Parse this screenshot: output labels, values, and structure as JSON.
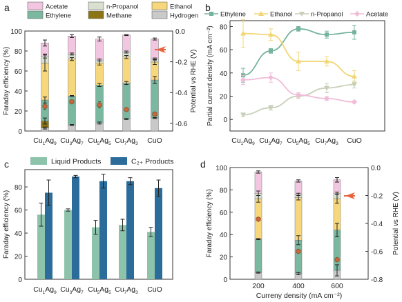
{
  "colors": {
    "acetate": "#f2c6e0",
    "npropanol": "#d9e0cf",
    "ethanol": "#f7d77c",
    "ethylene": "#7ab8a0",
    "methane": "#8b7414",
    "hydrogen": "#c9c9c9",
    "potential": "#c9683c",
    "liquid": "#8dc3ab",
    "c2": "#2b6c9a",
    "line_ethylene": "#74b39c",
    "line_ethanol": "#f3d674",
    "line_npropanol": "#c7cfb8",
    "line_acetate": "#f0bcd8",
    "arrow": "#e8623c"
  },
  "category_labels": [
    {
      "base": "Cu",
      "s1": "1",
      "mid": "Ag",
      "s2": "9"
    },
    {
      "base": "Cu",
      "s1": "3",
      "mid": "Ag",
      "s2": "7"
    },
    {
      "base": "Cu",
      "s1": "5",
      "mid": "Ag",
      "s2": "5"
    },
    {
      "base": "Cu",
      "s1": "7",
      "mid": "Ag",
      "s2": "3"
    },
    {
      "base": "CuO",
      "s1": "",
      "mid": "",
      "s2": ""
    }
  ],
  "panel_letters": [
    "a",
    "b",
    "c",
    "d"
  ],
  "chart_data": [
    {
      "id": "a",
      "type": "bar",
      "stacked": true,
      "legend": [
        "Acetate",
        "n-Propanol",
        "Ethanol",
        "Ethylene",
        "Methane",
        "Hydrogen"
      ],
      "legend_position": "top",
      "ylabel": "Faraday efficiency (%)",
      "ylim": [
        0,
        100
      ],
      "yticks": [
        0,
        20,
        40,
        60,
        80,
        100
      ],
      "y2label": "Potential vs RHE (V)",
      "y2lim": [
        0,
        -0.65
      ],
      "y2ticks": [
        "0.0",
        "-0.2",
        "-0.4",
        "-0.6"
      ],
      "series": [
        {
          "name": "Hydrogen",
          "values": [
            3,
            6,
            8,
            12,
            13
          ],
          "errors": [
            1,
            0.5,
            1,
            0.5,
            0.5
          ]
        },
        {
          "name": "Methane",
          "values": [
            7,
            0,
            0,
            0,
            0
          ],
          "errors": [
            3,
            0,
            0,
            0,
            0
          ]
        },
        {
          "name": "Ethylene",
          "values": [
            21,
            29,
            38,
            36,
            38
          ],
          "errors": [
            3,
            0.5,
            1.5,
            1.5,
            3.5
          ]
        },
        {
          "name": "Ethanol",
          "values": [
            37,
            37,
            22,
            26,
            18
          ],
          "errors": [
            8,
            1.5,
            2,
            1.5,
            2.5
          ]
        },
        {
          "name": "n-Propanol",
          "values": [
            7,
            5,
            3,
            5,
            3
          ],
          "errors": [
            2,
            1,
            1,
            1,
            1
          ]
        },
        {
          "name": "Acetate",
          "values": [
            13,
            18,
            21,
            17,
            20
          ],
          "errors": [
            3,
            1.5,
            2,
            0.5,
            1
          ]
        }
      ],
      "potential": [
        -0.49,
        -0.46,
        -0.48,
        -0.51,
        -0.54
      ],
      "potential_err": [
        0.02,
        0.01,
        0.02,
        0.01,
        0.01
      ]
    },
    {
      "id": "b",
      "type": "line",
      "legend": [
        "Ethylene",
        "Ethanol",
        "n-Propanol",
        "Acetate"
      ],
      "legend_position": "top",
      "ylabel": "Partial current density (mA cm⁻²)",
      "ylim": [
        -10,
        85
      ],
      "yticks": [
        0,
        20,
        40,
        60,
        80
      ],
      "series": [
        {
          "name": "Ethylene",
          "values": [
            38,
            59,
            78,
            73,
            75
          ],
          "errors": [
            6,
            2,
            2,
            3,
            6
          ]
        },
        {
          "name": "Ethanol",
          "values": [
            74,
            73,
            50,
            50,
            37
          ],
          "errors": [
            12,
            5,
            8,
            4,
            5
          ]
        },
        {
          "name": "n-Propanol",
          "values": [
            4,
            10,
            20,
            27,
            30
          ],
          "errors": [
            1.5,
            2,
            2,
            4,
            3
          ]
        },
        {
          "name": "Acetate",
          "values": [
            34,
            36,
            21,
            18,
            15
          ],
          "errors": [
            4,
            4,
            2,
            1.5,
            1
          ]
        }
      ]
    },
    {
      "id": "c",
      "type": "bar",
      "legend": [
        "Liquid Products",
        "C₂₊ Products"
      ],
      "legend_position": "top",
      "ylabel": "Faraday efficiency (%)",
      "ylim": [
        0,
        95
      ],
      "yticks": [
        0,
        20,
        40,
        60,
        80
      ],
      "series": [
        {
          "name": "Liquid Products",
          "values": [
            56,
            60,
            45,
            47,
            41
          ],
          "errors": [
            10,
            1,
            6,
            5,
            4
          ]
        },
        {
          "name": "C₂₊ Products",
          "values": [
            75,
            89,
            85,
            85,
            79
          ],
          "errors": [
            11,
            1,
            6,
            3,
            7
          ]
        }
      ]
    },
    {
      "id": "d",
      "type": "bar",
      "stacked": true,
      "categories": [
        "200",
        "400",
        "600"
      ],
      "xlabel": "Curreny density (mA cm⁻²)",
      "ylabel": "Faraday efficiency (%)",
      "ylim": [
        0,
        100
      ],
      "yticks": [
        0,
        20,
        40,
        60,
        80,
        100
      ],
      "y2label": "Potential vs RHE (V)",
      "y2lim": [
        0,
        -0.8
      ],
      "y2ticks": [
        "0.0",
        "-0.2",
        "-0.4",
        "-0.6",
        "-0.8"
      ],
      "series": [
        {
          "name": "Hydrogen",
          "values": [
            6,
            5,
            8
          ],
          "errors": [
            0.5,
            1,
            5
          ]
        },
        {
          "name": "Ethylene",
          "values": [
            30,
            30,
            36
          ],
          "errors": [
            0.5,
            4,
            6
          ]
        },
        {
          "name": "Ethanol",
          "values": [
            36,
            38,
            28
          ],
          "errors": [
            3,
            2,
            4
          ]
        },
        {
          "name": "n-Propanol",
          "values": [
            5,
            3,
            5
          ],
          "errors": [
            2,
            1,
            1
          ]
        },
        {
          "name": "Acetate",
          "values": [
            19,
            12,
            12
          ],
          "errors": [
            1,
            1,
            2
          ]
        }
      ],
      "potential": [
        -0.37,
        -0.6,
        -0.66
      ],
      "potential_err": [
        0.01,
        0.01,
        0.01
      ]
    }
  ]
}
